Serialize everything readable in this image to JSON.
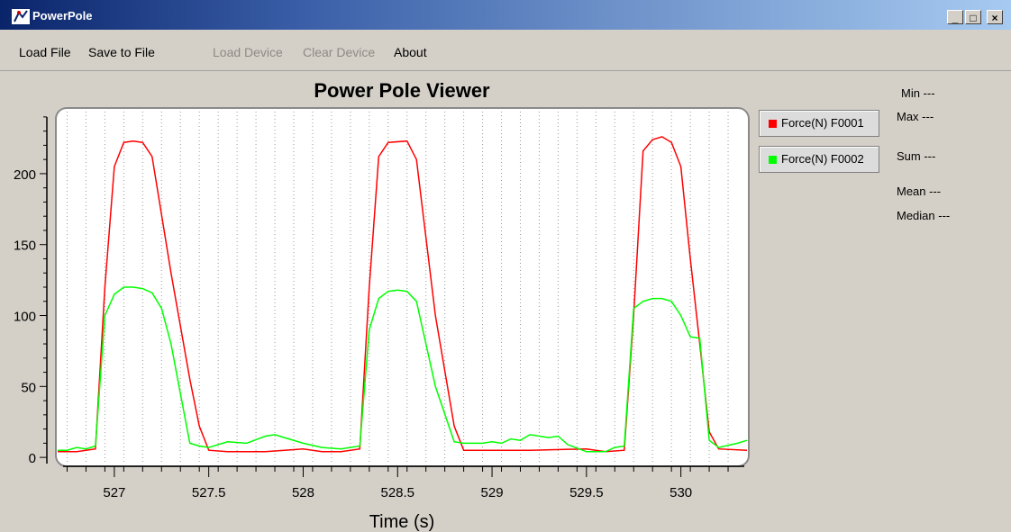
{
  "window": {
    "title": "PowerPole",
    "minimize_label": "_",
    "maximize_label": "□",
    "close_label": "×"
  },
  "menu": {
    "items": [
      {
        "label": "Load File",
        "enabled": true
      },
      {
        "label": "Save to File",
        "enabled": true
      },
      {
        "label": "Load Device",
        "enabled": false
      },
      {
        "label": "Clear Device",
        "enabled": false
      },
      {
        "label": "About",
        "enabled": true
      }
    ]
  },
  "legend": [
    {
      "label": "Force(N) F0001",
      "color": "#ff0000"
    },
    {
      "label": "Force(N) F0002",
      "color": "#00ff00"
    }
  ],
  "stats": {
    "min": "Min ---",
    "max": "Max ---",
    "sum": "Sum ---",
    "mean": "Mean ---",
    "median": "Median ---"
  },
  "chart_data": {
    "type": "line",
    "title": "Power Pole Viewer",
    "xlabel": "Time (s)",
    "ylabel": "",
    "xlim": [
      526.7,
      530.35
    ],
    "ylim": [
      -5,
      245
    ],
    "x_ticks": [
      527,
      527.5,
      528,
      528.5,
      529,
      529.5,
      530
    ],
    "x_tick_labels": [
      "527",
      "527.5",
      "528",
      "528.5",
      "529",
      "529.5",
      "530"
    ],
    "y_ticks": [
      0,
      50,
      100,
      150,
      200
    ],
    "y_tick_labels": [
      "0",
      "50",
      "100",
      "150",
      "200"
    ],
    "grid": "vertical dotted",
    "legend_position": "right",
    "series": [
      {
        "name": "Force(N) F0001",
        "color": "#ff0000",
        "x": [
          526.7,
          526.8,
          526.9,
          526.95,
          527.0,
          527.05,
          527.1,
          527.15,
          527.2,
          527.3,
          527.4,
          527.45,
          527.5,
          527.6,
          527.8,
          528.0,
          528.1,
          528.2,
          528.3,
          528.35,
          528.4,
          528.45,
          528.55,
          528.6,
          528.7,
          528.8,
          528.85,
          529.0,
          529.2,
          529.5,
          529.6,
          529.7,
          529.75,
          529.8,
          529.85,
          529.9,
          529.95,
          530.0,
          530.05,
          530.1,
          530.15,
          530.2,
          530.35
        ],
        "y": [
          4,
          4,
          6,
          120,
          205,
          222,
          223,
          222,
          212,
          130,
          55,
          22,
          5,
          4,
          4,
          6,
          4,
          4,
          6,
          120,
          212,
          222,
          223,
          210,
          100,
          22,
          5,
          5,
          5,
          6,
          4,
          5,
          100,
          216,
          224,
          226,
          222,
          205,
          140,
          80,
          18,
          6,
          5
        ]
      },
      {
        "name": "Force(N) F0002",
        "color": "#00ff00",
        "x": [
          526.7,
          526.75,
          526.8,
          526.85,
          526.9,
          526.95,
          527.0,
          527.05,
          527.1,
          527.15,
          527.2,
          527.25,
          527.3,
          527.35,
          527.4,
          527.45,
          527.5,
          527.6,
          527.7,
          527.8,
          527.85,
          527.9,
          528.0,
          528.1,
          528.2,
          528.3,
          528.35,
          528.4,
          528.45,
          528.5,
          528.55,
          528.6,
          528.7,
          528.8,
          528.85,
          528.95,
          529.0,
          529.05,
          529.1,
          529.15,
          529.2,
          529.3,
          529.35,
          529.4,
          529.5,
          529.6,
          529.65,
          529.7,
          529.75,
          529.8,
          529.85,
          529.9,
          529.95,
          530.0,
          530.05,
          530.1,
          530.15,
          530.2,
          530.3,
          530.35
        ],
        "y": [
          5,
          5,
          7,
          6,
          8,
          100,
          115,
          120,
          120,
          119,
          116,
          105,
          80,
          45,
          10,
          8,
          7,
          11,
          10,
          15,
          16,
          14,
          10,
          7,
          6,
          8,
          90,
          112,
          117,
          118,
          117,
          110,
          50,
          11,
          10,
          10,
          11,
          10,
          13,
          12,
          16,
          14,
          15,
          9,
          4,
          4,
          7,
          8,
          105,
          110,
          112,
          112,
          110,
          100,
          85,
          84,
          12,
          7,
          10,
          12
        ]
      }
    ]
  }
}
